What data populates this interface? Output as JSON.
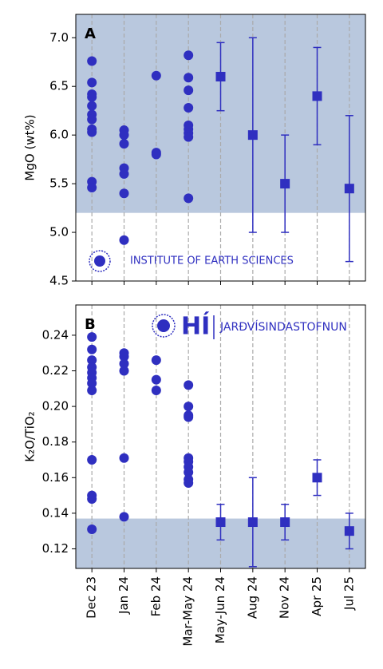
{
  "chart_data": [
    {
      "type": "strip",
      "panel_label": "A",
      "ylabel": "MgO (wt%)",
      "annotation": "INSTITUTE OF EARTH SCIENCES",
      "ylim": [
        4.5,
        7.24
      ],
      "yticks": [
        4.5,
        {
          "value": 5,
          "label": "5.0"
        },
        5.5,
        {
          "value": 6,
          "label": "6.0"
        },
        6.5,
        {
          "value": 7,
          "label": "7.0"
        }
      ],
      "shaded_range": [
        5.2,
        7.24
      ],
      "shade_color": "#b9c8de",
      "grid": true,
      "series": [
        {
          "marker": "circle",
          "color": "#2f2fc0",
          "values": [
            [
              6.76,
              6.54,
              6.42,
              6.39,
              6.3,
              6.21,
              6.16,
              6.06,
              6.03,
              5.52,
              5.46
            ],
            [
              6.05,
              6.0,
              5.91,
              5.66,
              5.6,
              5.4,
              4.92
            ],
            [
              6.61,
              5.82,
              5.8
            ],
            [
              6.82,
              6.59,
              6.46,
              6.28,
              6.1,
              6.06,
              6.02,
              5.98,
              5.35
            ],
            [],
            [],
            [],
            [],
            []
          ]
        },
        {
          "marker": "square",
          "color": "#2f2fc0",
          "values": [
            null,
            null,
            null,
            null,
            6.6,
            6.0,
            5.5,
            6.4,
            5.45
          ],
          "errors": [
            null,
            null,
            null,
            null,
            0.35,
            1.0,
            0.5,
            0.5,
            0.75
          ]
        }
      ]
    },
    {
      "type": "strip",
      "panel_label": "B",
      "ylabel": "K₂O/TiO₂",
      "logo_text": "HÍ",
      "annotation": "JARÐVÍSINDASTOFNUN",
      "categories": [
        "Dec 23",
        "Jan 24",
        "Feb 24",
        "Mar-May 24",
        "May-Jun 24",
        "Aug 24",
        "Nov 24",
        "Apr 25",
        "Jul 25"
      ],
      "ylim": [
        0.109,
        0.257
      ],
      "yticks": [
        0.12,
        0.14,
        0.16,
        0.18,
        {
          "value": 0.2,
          "label": "0.20"
        },
        0.22,
        0.24
      ],
      "shaded_range": [
        0.109,
        0.137
      ],
      "shade_color": "#b9c8de",
      "grid": true,
      "series": [
        {
          "marker": "circle",
          "color": "#2f2fc0",
          "values": [
            [
              0.239,
              0.232,
              0.226,
              0.222,
              0.219,
              0.216,
              0.213,
              0.209,
              0.17,
              0.15,
              0.148,
              0.131
            ],
            [
              0.23,
              0.228,
              0.224,
              0.22,
              0.171,
              0.138
            ],
            [
              0.226,
              0.215,
              0.209
            ],
            [
              0.212,
              0.2,
              0.195,
              0.194,
              0.171,
              0.169,
              0.166,
              0.163,
              0.159,
              0.157
            ],
            [],
            [],
            [],
            [],
            []
          ]
        },
        {
          "marker": "square",
          "color": "#2f2fc0",
          "values": [
            null,
            null,
            null,
            null,
            0.135,
            0.135,
            0.135,
            0.16,
            0.13
          ],
          "errors": [
            null,
            null,
            null,
            null,
            0.01,
            0.025,
            0.01,
            0.01,
            0.01
          ]
        }
      ]
    }
  ]
}
